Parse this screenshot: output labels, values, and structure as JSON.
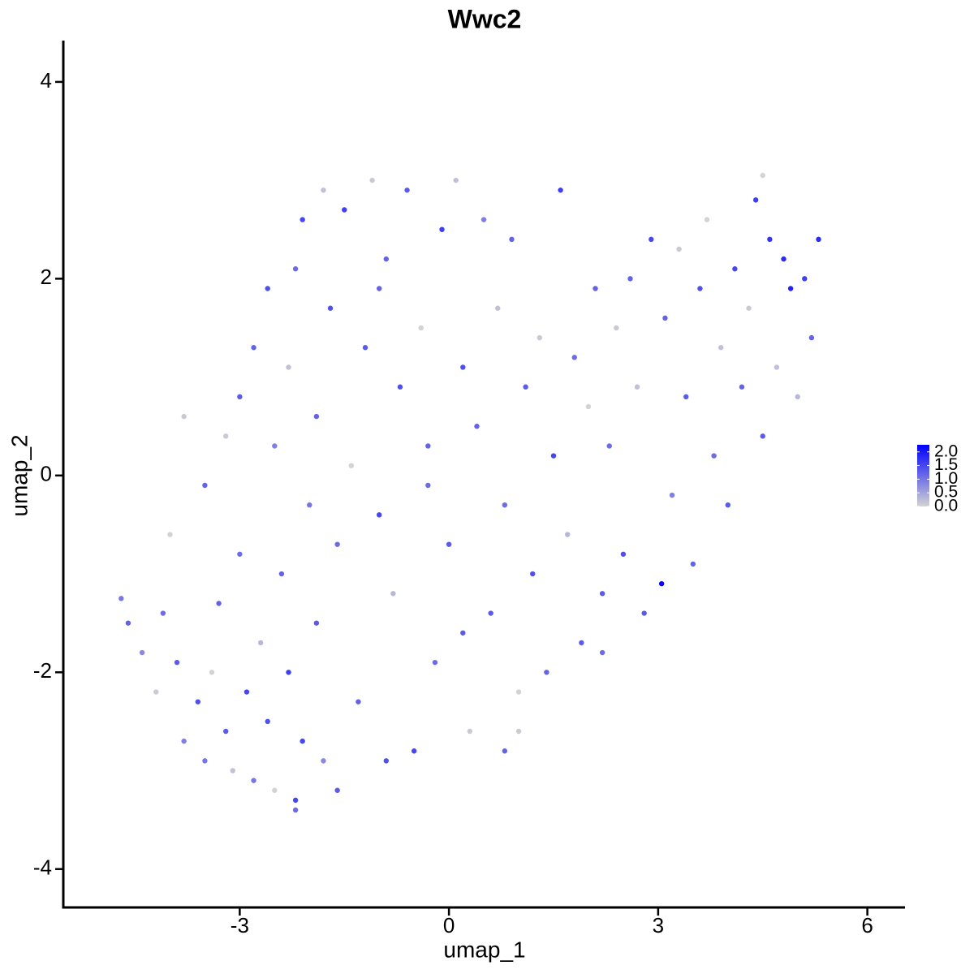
{
  "chart_data": {
    "type": "scatter",
    "title": "Wwc2",
    "x_label": "umap_1",
    "y_label": "umap_2",
    "xlim": [
      -5.53,
      6.54
    ],
    "ylim": [
      -4.39,
      4.42
    ],
    "xticks": [
      -3,
      0,
      3,
      6
    ],
    "yticks": [
      -4,
      -2,
      0,
      2,
      4
    ],
    "color_low": "#d3d3d3",
    "color_high": "#0000ff",
    "color_lim": [
      0,
      2.26
    ],
    "color_ticks": [
      {
        "value": 0,
        "label": "0.0"
      },
      {
        "value": 0.5,
        "label": "0.5"
      },
      {
        "value": 1,
        "label": "1.0"
      },
      {
        "value": 1.5,
        "label": "1.5"
      },
      {
        "value": 2,
        "label": "2.0"
      }
    ],
    "x": [
      -4.7,
      -4.6,
      -4.4,
      -4.2,
      -4.1,
      -3.9,
      -3.8,
      -3.6,
      -3.5,
      -3.4,
      -3.3,
      -3.2,
      -3.1,
      -3.0,
      -2.9,
      -2.8,
      -2.7,
      -2.6,
      -2.5,
      -2.4,
      -2.3,
      -2.2,
      -2.1,
      -2.0,
      -1.9,
      -1.8,
      -3.5,
      -3.2,
      -3.0,
      -2.8,
      -2.6,
      -2.5,
      -2.3,
      -2.2,
      -2.1,
      -1.9,
      -1.8,
      -1.7,
      -1.6,
      -1.5,
      -1.4,
      -1.3,
      -1.2,
      -1.1,
      -1.0,
      -0.9,
      -0.8,
      -0.7,
      -0.6,
      -0.5,
      -0.4,
      -0.3,
      -0.2,
      -0.1,
      0.0,
      0.1,
      0.2,
      0.3,
      0.4,
      0.5,
      0.6,
      0.7,
      0.8,
      0.9,
      1.0,
      1.1,
      1.2,
      1.3,
      1.4,
      1.5,
      1.6,
      1.7,
      1.8,
      1.9,
      2.0,
      2.1,
      2.2,
      2.3,
      2.4,
      2.5,
      2.6,
      2.7,
      2.8,
      2.9,
      3.05,
      3.1,
      3.2,
      3.3,
      3.4,
      3.5,
      3.6,
      3.7,
      3.8,
      3.9,
      4.0,
      4.1,
      4.2,
      4.3,
      4.4,
      4.5,
      4.6,
      4.7,
      4.8,
      4.9,
      5.0,
      5.1,
      5.2,
      5.3,
      4.5,
      2.2,
      1.0,
      0.8,
      -0.9,
      -1.6,
      -3.8,
      -4.0,
      -2.2,
      -1.0,
      0.2,
      -0.3
    ],
    "y": [
      -1.25,
      -1.5,
      -1.8,
      -2.2,
      -1.4,
      -1.9,
      -2.7,
      -2.3,
      -2.9,
      -2.0,
      -1.3,
      -2.6,
      -3.0,
      -0.8,
      -2.2,
      -3.1,
      -1.7,
      -2.5,
      -3.2,
      -1.0,
      -2.0,
      -3.4,
      -2.7,
      -0.3,
      -1.5,
      -2.9,
      -0.1,
      0.4,
      0.8,
      1.3,
      1.9,
      0.3,
      1.1,
      2.1,
      2.6,
      0.6,
      2.9,
      1.7,
      -0.7,
      2.7,
      0.1,
      -2.3,
      1.3,
      3.0,
      -0.4,
      2.2,
      -1.2,
      0.9,
      2.9,
      -2.8,
      1.5,
      0.3,
      -1.9,
      2.5,
      -0.7,
      3.0,
      1.1,
      -2.6,
      0.5,
      2.6,
      -1.4,
      1.7,
      -0.3,
      2.4,
      -2.2,
      0.9,
      -1.0,
      1.4,
      -2.0,
      0.2,
      2.9,
      -0.6,
      1.2,
      -1.7,
      0.7,
      1.9,
      -1.2,
      0.3,
      1.5,
      -0.8,
      2.0,
      0.9,
      -1.4,
      2.4,
      -1.1,
      1.6,
      -0.2,
      2.3,
      0.8,
      -0.9,
      1.9,
      2.6,
      0.2,
      1.3,
      -0.3,
      2.1,
      0.9,
      1.7,
      2.8,
      0.4,
      2.4,
      1.1,
      2.2,
      1.9,
      0.8,
      2.0,
      1.4,
      2.4,
      3.05,
      -1.8,
      -2.6,
      -2.8,
      -2.9,
      -3.2,
      0.6,
      -0.6,
      -3.3,
      1.9,
      -1.6,
      -0.1
    ],
    "values": [
      1.0,
      1.2,
      0.8,
      0.1,
      1.1,
      1.3,
      0.9,
      1.4,
      1.0,
      0.0,
      1.2,
      1.3,
      0.2,
      1.1,
      1.5,
      1.0,
      0.3,
      1.4,
      0.0,
      1.2,
      1.6,
      1.1,
      1.5,
      1.0,
      1.3,
      0.8,
      1.2,
      0.1,
      1.3,
      1.2,
      1.4,
      0.9,
      0.2,
      1.1,
      1.5,
      1.2,
      0.2,
      1.4,
      1.1,
      1.6,
      0.0,
      1.2,
      1.3,
      0.1,
      1.5,
      1.2,
      0.3,
      1.4,
      1.3,
      1.5,
      0.0,
      1.2,
      1.1,
      1.6,
      1.3,
      0.2,
      1.4,
      0.1,
      1.2,
      0.9,
      1.3,
      0.2,
      1.1,
      1.2,
      0.0,
      1.3,
      1.4,
      0.1,
      1.2,
      1.5,
      1.6,
      0.3,
      1.1,
      1.3,
      0.0,
      1.2,
      1.3,
      1.1,
      0.1,
      1.4,
      1.2,
      0.2,
      1.3,
      1.5,
      2.2,
      1.2,
      0.9,
      0.1,
      1.3,
      1.2,
      1.4,
      0.0,
      1.1,
      0.2,
      1.3,
      1.5,
      1.2,
      0.1,
      1.6,
      1.3,
      1.7,
      0.2,
      1.8,
      1.9,
      0.3,
      1.6,
      1.2,
      1.8,
      0.0,
      1.1,
      0.1,
      1.2,
      1.4,
      1.3,
      0.1,
      0.0,
      1.5,
      1.2,
      1.3,
      1.1
    ]
  }
}
